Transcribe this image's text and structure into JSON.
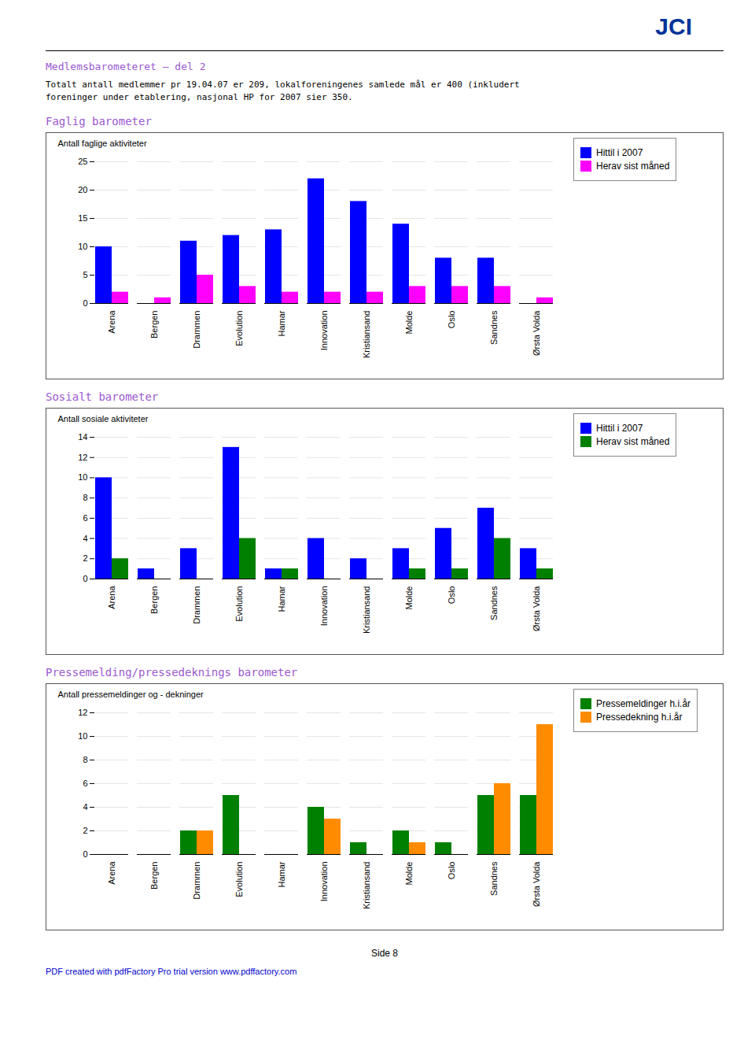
{
  "title": "Medlemsbarometeret – del 2",
  "annotations": [
    "JCI",
    "Totalt antall medlemmer pr 19.04.07 er 209, lokalforeningenes samlede mål er 400 (inkludert",
    "foreninger under etablering, nasjonal HP for 2007 sier 350.",
    "Side 8",
    "PDF created with pdfFactory Pro trial version www.pdffactory.com"
  ],
  "chart_data": [
    {
      "type": "bar",
      "title": "Faglig barometer",
      "categories": [
        "Arena",
        "Bergen",
        "Drammen",
        "Evolution",
        "Hamar",
        "Innovation",
        "Kristiansand",
        "Molde",
        "Oslo",
        "Sandnes",
        "Ørsta Volda"
      ],
      "series": [
        {
          "name": "Hittil i 2007",
          "color": "#0000FF",
          "values": [
            10,
            0,
            11,
            12,
            13,
            22,
            18,
            14,
            8,
            8,
            0
          ]
        },
        {
          "name": "Herav sist måned",
          "color": "#FF00FF",
          "values": [
            2,
            1,
            5,
            3,
            2,
            2,
            2,
            3,
            3,
            3,
            1
          ]
        }
      ],
      "ylabel": "Antall faglige aktiviteter",
      "ylim": [
        0,
        25
      ],
      "yticks": [
        0,
        5,
        10,
        15,
        20,
        25
      ],
      "grid": true,
      "legend": "upper right"
    },
    {
      "type": "bar",
      "title": "Sosialt barometer",
      "categories": [
        "Arena",
        "Bergen",
        "Drammen",
        "Evolution",
        "Hamar",
        "Innovation",
        "Kristiansand",
        "Molde",
        "Oslo",
        "Sandnes",
        "Ørsta Volda"
      ],
      "series": [
        {
          "name": "Hittil i 2007",
          "color": "#0000FF",
          "values": [
            10,
            1,
            3,
            13,
            1,
            4,
            2,
            3,
            5,
            7,
            3
          ]
        },
        {
          "name": "Herav sist måned",
          "color": "#008000",
          "values": [
            2,
            0,
            0,
            4,
            1,
            0,
            0,
            1,
            1,
            4,
            1
          ]
        }
      ],
      "ylabel": "Antall sosiale aktiviteter",
      "ylim": [
        0,
        14
      ],
      "yticks": [
        0,
        2,
        4,
        6,
        8,
        10,
        12,
        14
      ],
      "grid": true,
      "legend": "upper right"
    },
    {
      "type": "bar",
      "title": "Pressemelding/pressedeknings barometer",
      "categories": [
        "Arena",
        "Bergen",
        "Drammen",
        "Evolution",
        "Hamar",
        "Innovation",
        "Kristiansand",
        "Molde",
        "Oslo",
        "Sandnes",
        "Ørsta Volda"
      ],
      "series": [
        {
          "name": "Pressemeldinger h.i.år",
          "color": "#008000",
          "values": [
            0,
            0,
            2,
            5,
            0,
            4,
            1,
            2,
            1,
            5,
            5
          ]
        },
        {
          "name": "Pressedekning h.i.år",
          "color": "#FF8C00",
          "values": [
            0,
            0,
            2,
            0,
            0,
            3,
            0,
            1,
            0,
            6,
            11
          ]
        }
      ],
      "ylabel": "Antall pressemeldinger og - dekninger",
      "ylim": [
        0,
        12
      ],
      "yticks": [
        0,
        2,
        4,
        6,
        8,
        10,
        12
      ],
      "grid": true,
      "legend": "upper right"
    }
  ]
}
